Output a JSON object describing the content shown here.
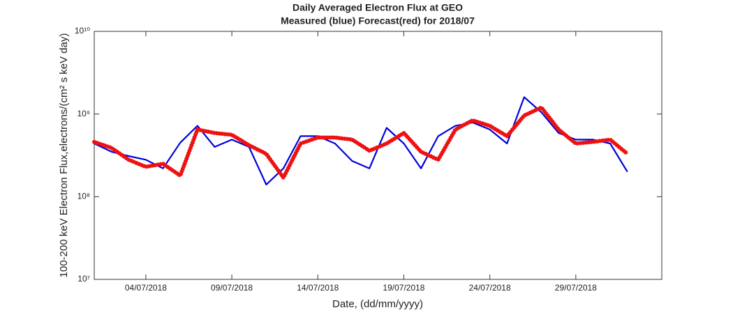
{
  "chart_data": {
    "type": "line",
    "title": "Daily Averaged Electron Flux at GEO",
    "subtitle": "Measured (blue) Forecast(red) for 2018/07",
    "xlabel": "Date, (dd/mm/yyyy)",
    "ylabel": "100-200 keV Electron Flux,electrons/(cm² s keV day)",
    "log_y": true,
    "x": [
      "2018-07-01",
      "2018-07-02",
      "2018-07-03",
      "2018-07-04",
      "2018-07-05",
      "2018-07-06",
      "2018-07-07",
      "2018-07-08",
      "2018-07-09",
      "2018-07-10",
      "2018-07-11",
      "2018-07-12",
      "2018-07-13",
      "2018-07-14",
      "2018-07-15",
      "2018-07-16",
      "2018-07-17",
      "2018-07-18",
      "2018-07-19",
      "2018-07-20",
      "2018-07-21",
      "2018-07-22",
      "2018-07-23",
      "2018-07-24",
      "2018-07-25",
      "2018-07-26",
      "2018-07-27",
      "2018-07-28",
      "2018-07-29",
      "2018-07-30",
      "2018-07-31",
      "2018-08-01"
    ],
    "series": [
      {
        "name": "Measured",
        "color": "#0000dd",
        "style": "line",
        "values": [
          440000000,
          350000000,
          310000000,
          280000000,
          220000000,
          450000000,
          720000000,
          400000000,
          490000000,
          400000000,
          140000000,
          220000000,
          540000000,
          540000000,
          440000000,
          270000000,
          220000000,
          680000000,
          440000000,
          220000000,
          540000000,
          720000000,
          790000000,
          650000000,
          440000000,
          1600000000,
          1050000000,
          590000000,
          490000000,
          490000000,
          440000000,
          200000000
        ]
      },
      {
        "name": "Forecast",
        "color": "#ee1111",
        "style": "dots",
        "values": [
          460000000,
          390000000,
          280000000,
          230000000,
          250000000,
          180000000,
          650000000,
          590000000,
          560000000,
          420000000,
          330000000,
          170000000,
          440000000,
          520000000,
          520000000,
          490000000,
          360000000,
          440000000,
          590000000,
          350000000,
          280000000,
          650000000,
          840000000,
          720000000,
          540000000,
          960000000,
          1200000000,
          650000000,
          440000000,
          460000000,
          490000000,
          330000000
        ]
      }
    ],
    "xlim": [
      "2018-07-01",
      "2018-08-03"
    ],
    "xticks": [
      {
        "value": "2018-07-04",
        "label": "04/07/2018"
      },
      {
        "value": "2018-07-09",
        "label": "09/07/2018"
      },
      {
        "value": "2018-07-14",
        "label": "14/07/2018"
      },
      {
        "value": "2018-07-19",
        "label": "19/07/2018"
      },
      {
        "value": "2018-07-24",
        "label": "24/07/2018"
      },
      {
        "value": "2018-07-29",
        "label": "29/07/2018"
      }
    ],
    "ylim": [
      10000000,
      10000000000
    ],
    "yticks": [
      {
        "value": 10000000,
        "label": "10⁷"
      },
      {
        "value": 100000000,
        "label": "10⁸"
      },
      {
        "value": 1000000000,
        "label": "10⁹"
      },
      {
        "value": 10000000000,
        "label": "10¹⁰"
      }
    ],
    "grid": false
  }
}
